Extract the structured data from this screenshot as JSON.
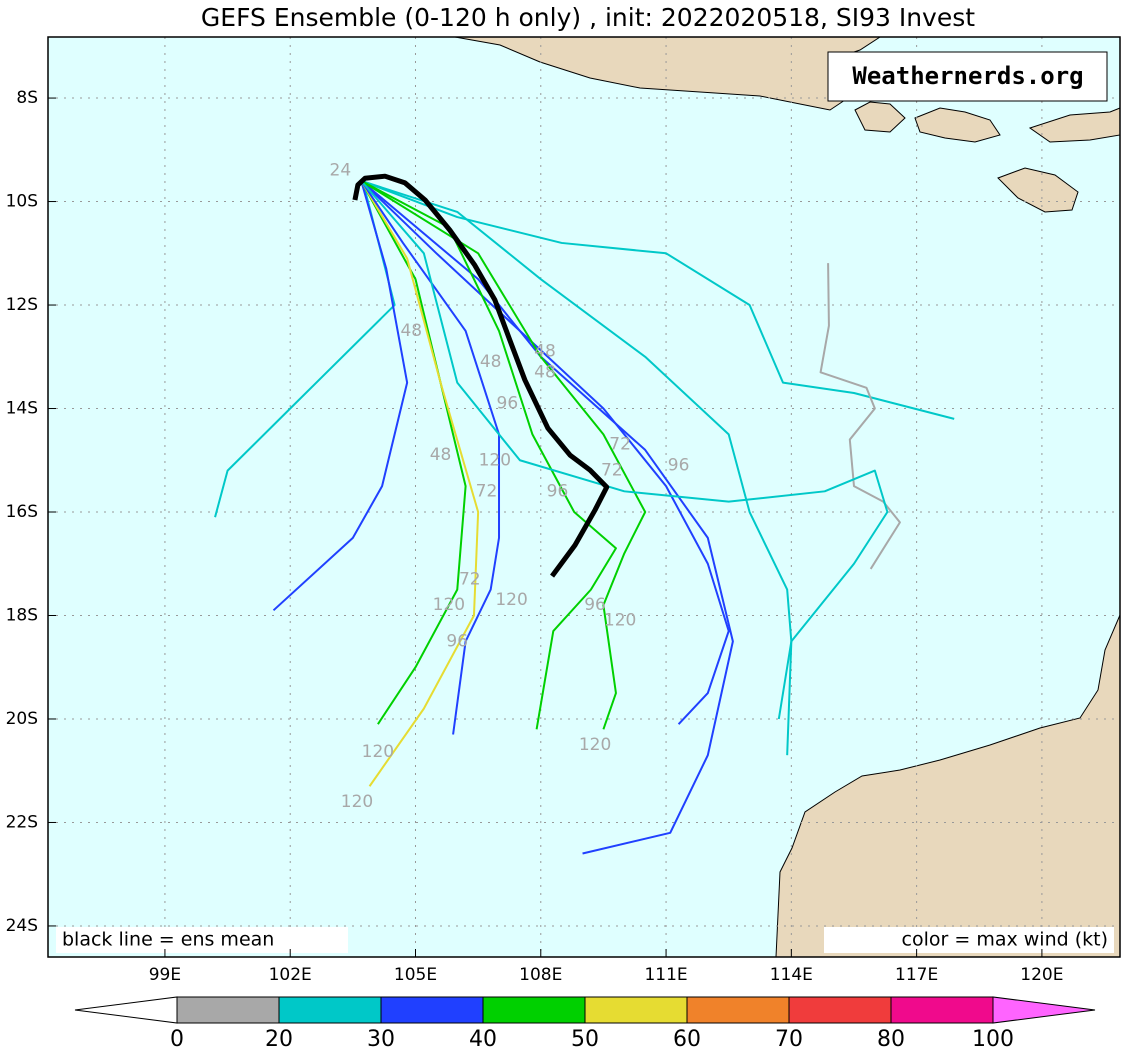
{
  "map": {
    "title": "GEFS Ensemble (0-120 h only) , init: 2022020518, SI93 Invest",
    "watermark": "Weathernerds.org",
    "note_left": "black line = ens mean",
    "note_right": "color = max wind (kt)",
    "lon_range": [
      96.2,
      121.87
    ],
    "lat_range": [
      -6.82,
      -24.6
    ],
    "lon_ticks": [
      {
        "value": 99,
        "label": "99E"
      },
      {
        "value": 102,
        "label": "102E"
      },
      {
        "value": 105,
        "label": "105E"
      },
      {
        "value": 108,
        "label": "108E"
      },
      {
        "value": 111,
        "label": "111E"
      },
      {
        "value": 114,
        "label": "114E"
      },
      {
        "value": 117,
        "label": "117E"
      },
      {
        "value": 120,
        "label": "120E"
      }
    ],
    "lat_ticks": [
      {
        "value": -8,
        "label": "8S"
      },
      {
        "value": -10,
        "label": "10S"
      },
      {
        "value": -12,
        "label": "12S"
      },
      {
        "value": -14,
        "label": "14S"
      },
      {
        "value": -16,
        "label": "16S"
      },
      {
        "value": -18,
        "label": "18S"
      },
      {
        "value": -20,
        "label": "20S"
      },
      {
        "value": -22,
        "label": "22S"
      },
      {
        "value": -24,
        "label": "24S"
      }
    ],
    "mean_track": {
      "color": "#000000",
      "lon": [
        103.55,
        103.62,
        103.79,
        104.27,
        104.75,
        105.23,
        105.82,
        106.42,
        106.9,
        107.26,
        107.62,
        108.17,
        108.7,
        109.18,
        109.58,
        109.3,
        108.82,
        108.27
      ],
      "lat": [
        -9.97,
        -9.68,
        -9.55,
        -9.51,
        -9.64,
        -9.97,
        -10.55,
        -11.23,
        -11.9,
        -12.68,
        -13.45,
        -14.38,
        -14.9,
        -15.19,
        -15.52,
        -15.96,
        -16.64,
        -17.24
      ]
    },
    "tracks": [
      {
        "color": "#00c8c8",
        "lon": [
          103.7,
          103.8,
          104.5,
          102.0,
          100.5,
          100.2
        ],
        "lat": [
          -9.6,
          -9.8,
          -12.0,
          -14.0,
          -15.2,
          -16.1
        ]
      },
      {
        "color": "#2040ff",
        "lon": [
          103.7,
          104.3,
          104.8,
          104.2,
          103.5,
          101.6
        ],
        "lat": [
          -9.6,
          -11.3,
          -13.5,
          -15.5,
          -16.5,
          -17.9
        ]
      },
      {
        "color": "#00d000",
        "lon": [
          103.7,
          105.0,
          105.6,
          106.2,
          106.0,
          105.0,
          104.1
        ],
        "lat": [
          -9.6,
          -11.5,
          -13.5,
          -15.5,
          -17.5,
          -19.0,
          -20.1
        ]
      },
      {
        "color": "#e6dc32",
        "lon": [
          103.7,
          104.8,
          105.6,
          106.5,
          106.4,
          105.2,
          103.9
        ],
        "lat": [
          -9.6,
          -11.1,
          -13.5,
          -16.0,
          -18.0,
          -19.8,
          -21.3
        ]
      },
      {
        "color": "#2040ff",
        "lon": [
          103.7,
          106.5,
          108.0,
          110.5,
          112.0,
          112.6,
          112.0,
          111.1,
          109.0
        ],
        "lat": [
          -9.6,
          -11.5,
          -13.0,
          -14.8,
          -16.5,
          -18.5,
          -20.7,
          -22.2,
          -22.6
        ]
      },
      {
        "color": "#00c8c8",
        "lon": [
          103.7,
          106.0,
          108.5,
          111.0,
          113.0,
          113.8,
          115.5,
          117.9
        ],
        "lat": [
          -9.6,
          -10.3,
          -10.8,
          -11.0,
          -12.0,
          -13.5,
          -13.7,
          -14.2
        ]
      },
      {
        "color": "#a8a8a8",
        "lon": [
          114.88,
          114.9,
          114.7,
          115.8,
          116.0,
          115.4,
          115.5,
          116.2,
          116.6,
          115.9
        ],
        "lat": [
          -11.19,
          -12.4,
          -13.3,
          -13.6,
          -14.0,
          -14.6,
          -15.5,
          -15.8,
          -16.2,
          -17.1
        ]
      },
      {
        "color": "#00c8c8",
        "lon": [
          103.7,
          106.0,
          108.0,
          110.5,
          112.5,
          113.0,
          113.9,
          114.0,
          113.9
        ],
        "lat": [
          -9.6,
          -10.2,
          -11.5,
          -13.0,
          -14.5,
          -16.0,
          -17.5,
          -18.5,
          -20.7
        ]
      },
      {
        "color": "#2040ff",
        "lon": [
          103.7,
          105.5,
          107.5,
          109.5,
          111.0,
          112.0,
          112.5,
          112.0,
          111.3
        ],
        "lat": [
          -9.6,
          -11.0,
          -12.5,
          -14.0,
          -15.5,
          -17.0,
          -18.3,
          -19.5,
          -20.1
        ]
      },
      {
        "color": "#00d000",
        "lon": [
          103.7,
          105.8,
          107.0,
          107.8,
          108.8,
          109.8,
          109.2,
          108.3,
          107.9
        ],
        "lat": [
          -9.6,
          -10.5,
          -12.5,
          -14.5,
          -16.0,
          -16.7,
          -17.5,
          -18.3,
          -20.2
        ]
      },
      {
        "color": "#2040ff",
        "lon": [
          103.7,
          104.7,
          106.2,
          107.0,
          107.0,
          106.8,
          106.2,
          105.9
        ],
        "lat": [
          -9.6,
          -10.8,
          -12.5,
          -14.5,
          -16.5,
          -17.5,
          -18.5,
          -20.3
        ]
      },
      {
        "color": "#00d000",
        "lon": [
          103.7,
          106.5,
          108.0,
          109.5,
          110.5,
          110.0,
          109.5,
          109.8,
          109.5
        ],
        "lat": [
          -9.6,
          -11.0,
          -13.0,
          -14.5,
          -16.0,
          -16.8,
          -17.8,
          -19.5,
          -20.2
        ]
      },
      {
        "color": "#00c8c8",
        "lon": [
          103.7,
          105.2,
          106.0,
          107.5,
          110.0,
          112.5,
          114.8,
          116.0,
          116.3,
          115.5,
          114.0,
          113.7
        ],
        "lat": [
          -9.6,
          -11.0,
          -13.5,
          -15.0,
          -15.6,
          -15.8,
          -15.6,
          -15.2,
          -16.0,
          -17.0,
          -18.5,
          -20.0
        ]
      }
    ],
    "hour_labels": [
      {
        "text": "120",
        "lon": 104.1,
        "lat": -20.64
      },
      {
        "text": "120",
        "lon": 103.6,
        "lat": -21.6
      },
      {
        "text": "120",
        "lon": 109.3,
        "lat": -20.5
      },
      {
        "text": "120",
        "lon": 109.9,
        "lat": -18.1
      },
      {
        "text": "96",
        "lon": 109.3,
        "lat": -17.8
      },
      {
        "text": "120",
        "lon": 107.3,
        "lat": -17.7
      },
      {
        "text": "96",
        "lon": 106.0,
        "lat": -18.5
      },
      {
        "text": "120",
        "lon": 105.8,
        "lat": -17.8
      },
      {
        "text": "72",
        "lon": 106.3,
        "lat": -17.3
      },
      {
        "text": "72",
        "lon": 106.7,
        "lat": -15.6
      },
      {
        "text": "120",
        "lon": 106.9,
        "lat": -15.0
      },
      {
        "text": "48",
        "lon": 104.9,
        "lat": -12.5
      },
      {
        "text": "48",
        "lon": 108.1,
        "lat": -12.9
      },
      {
        "text": "48",
        "lon": 108.1,
        "lat": -13.3
      },
      {
        "text": "96",
        "lon": 107.2,
        "lat": -13.9
      },
      {
        "text": "72",
        "lon": 109.9,
        "lat": -14.7
      },
      {
        "text": "72",
        "lon": 109.7,
        "lat": -15.2
      },
      {
        "text": "96",
        "lon": 111.3,
        "lat": -15.1
      },
      {
        "text": "96",
        "lon": 108.4,
        "lat": -15.6
      },
      {
        "text": "48",
        "lon": 105.6,
        "lat": -14.9
      },
      {
        "text": "24",
        "lon": 103.2,
        "lat": -9.4
      },
      {
        "text": "48",
        "lon": 106.8,
        "lat": -13.1
      }
    ],
    "colorbar": {
      "labels": [
        0,
        20,
        30,
        40,
        50,
        60,
        70,
        80,
        100
      ],
      "colors": [
        "#a8a8a8",
        "#00c8c8",
        "#2040ff",
        "#00d000",
        "#e6dc32",
        "#f0822a",
        "#f03c3c",
        "#f00a8c"
      ],
      "under_color": "#ffffff",
      "over_color": "#ff64ff"
    }
  }
}
